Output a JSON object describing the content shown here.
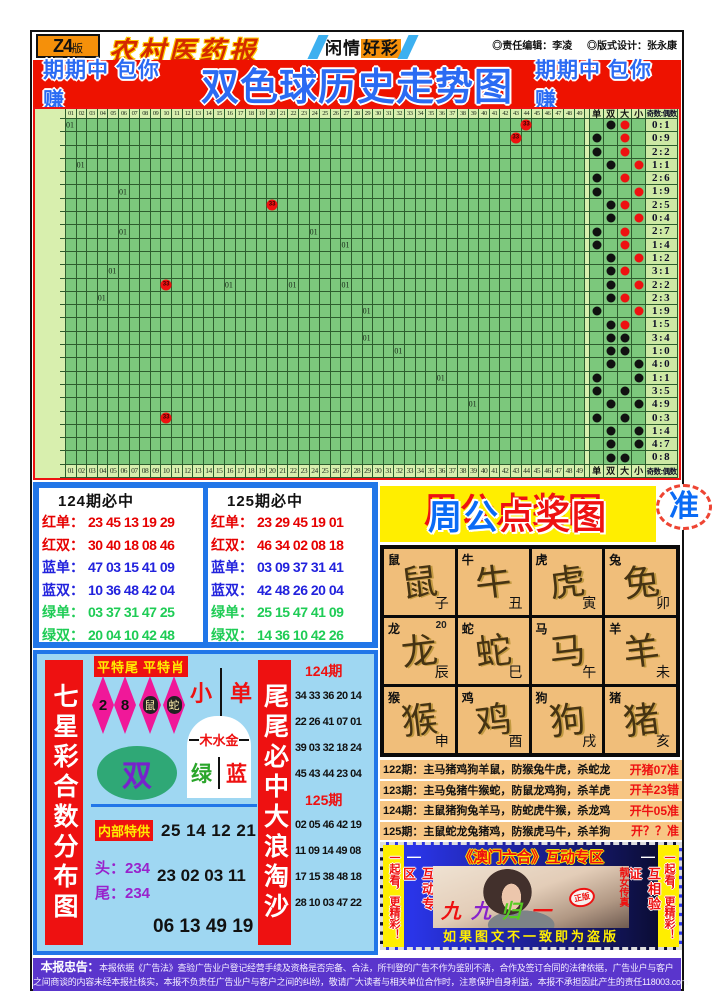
{
  "header": {
    "edition": "Z4",
    "edition_suffix": "版",
    "paper_name": "农村医药报",
    "ribbon_left": "闲情",
    "ribbon_right": "好彩",
    "editor": "◎责任编辑：李凌",
    "designer": "◎版式设计：张永康"
  },
  "banner": {
    "left": "期期中 包你赚",
    "title": "双色球历史走势图",
    "right": "期期中 包你赚"
  },
  "trend_chart": {
    "type": "table",
    "column_labels": [
      "01",
      "02",
      "03",
      "04",
      "05",
      "06",
      "07",
      "08",
      "09",
      "10",
      "11",
      "12",
      "13",
      "14",
      "15",
      "16",
      "17",
      "18",
      "19",
      "20",
      "21",
      "22",
      "23",
      "24",
      "25",
      "26",
      "27",
      "28",
      "29",
      "30",
      "31",
      "32",
      "33",
      "34",
      "35",
      "36",
      "37",
      "38",
      "39",
      "40",
      "41",
      "42",
      "43",
      "44",
      "45",
      "46",
      "47",
      "48",
      "49"
    ],
    "side_headers": [
      "单",
      "双",
      "大",
      "小"
    ],
    "ratio_header": "奇数:偶数",
    "rows": [
      {
        "marks": [
          {
            "col": 1,
            "text": "01"
          }
        ],
        "balls": [
          {
            "col": 44,
            "text": "33"
          }
        ],
        "parity": "双",
        "size": "大",
        "sizeColor": "red",
        "ratio": "0:1"
      },
      {
        "marks": [],
        "balls": [
          {
            "col": 43,
            "text": "33"
          }
        ],
        "parity": "单",
        "size": "大",
        "sizeColor": "red",
        "ratio": "0:9"
      },
      {
        "marks": [],
        "balls": [],
        "parity": "单",
        "size": "大",
        "sizeColor": "red",
        "ratio": "2:2"
      },
      {
        "marks": [
          {
            "col": 2,
            "text": "01"
          }
        ],
        "balls": [],
        "parity": "双",
        "size": "小",
        "sizeColor": "red",
        "ratio": "1:1"
      },
      {
        "marks": [],
        "balls": [],
        "parity": "单",
        "size": "大",
        "sizeColor": "red",
        "ratio": "2:6"
      },
      {
        "marks": [
          {
            "col": 6,
            "text": "01"
          }
        ],
        "balls": [],
        "parity": "单",
        "size": "小",
        "sizeColor": "red",
        "ratio": "1:9"
      },
      {
        "marks": [],
        "balls": [
          {
            "col": 20,
            "text": "33"
          }
        ],
        "parity": "双",
        "size": "大",
        "sizeColor": "red",
        "ratio": "2:5"
      },
      {
        "marks": [],
        "balls": [],
        "parity": "双",
        "size": "小",
        "sizeColor": "red",
        "ratio": "0:4"
      },
      {
        "marks": [
          {
            "col": 6,
            "text": "01"
          },
          {
            "col": 24,
            "text": "01"
          }
        ],
        "balls": [],
        "parity": "单",
        "size": "大",
        "sizeColor": "red",
        "ratio": "2:7"
      },
      {
        "marks": [
          {
            "col": 27,
            "text": "01"
          }
        ],
        "balls": [],
        "parity": "单",
        "size": "大",
        "sizeColor": "red",
        "ratio": "1:4"
      },
      {
        "marks": [],
        "balls": [],
        "parity": "双",
        "size": "小",
        "sizeColor": "red",
        "ratio": "1:2"
      },
      {
        "marks": [
          {
            "col": 5,
            "text": "01"
          }
        ],
        "balls": [],
        "parity": "双",
        "size": "大",
        "sizeColor": "red",
        "ratio": "3:1"
      },
      {
        "marks": [
          {
            "col": 16,
            "text": "01"
          },
          {
            "col": 22,
            "text": "01"
          },
          {
            "col": 27,
            "text": "01"
          }
        ],
        "balls": [
          {
            "col": 10,
            "text": "33"
          }
        ],
        "parity": "双",
        "size": "小",
        "sizeColor": "red",
        "ratio": "2:2"
      },
      {
        "marks": [
          {
            "col": 4,
            "text": "01"
          }
        ],
        "balls": [],
        "parity": "双",
        "size": "大",
        "sizeColor": "red",
        "ratio": "2:3"
      },
      {
        "marks": [
          {
            "col": 29,
            "text": "01"
          }
        ],
        "balls": [],
        "parity": "单",
        "size": "小",
        "sizeColor": "red",
        "ratio": "1:9"
      },
      {
        "marks": [],
        "balls": [],
        "parity": "双",
        "size": "大",
        "sizeColor": "red",
        "ratio": "1:5"
      },
      {
        "marks": [
          {
            "col": 29,
            "text": "01"
          }
        ],
        "balls": [],
        "parity": "双",
        "size": "大",
        "sizeColor": "black",
        "ratio": "3:4"
      },
      {
        "marks": [
          {
            "col": 32,
            "text": "01"
          }
        ],
        "balls": [],
        "parity": "双",
        "size": "大",
        "sizeColor": "black",
        "ratio": "1:0"
      },
      {
        "marks": [],
        "balls": [],
        "parity": "双",
        "size": "小",
        "sizeColor": "black",
        "ratio": "4:0"
      },
      {
        "marks": [
          {
            "col": 36,
            "text": "01"
          }
        ],
        "balls": [],
        "parity": "单",
        "size": "小",
        "sizeColor": "black",
        "ratio": "1:1"
      },
      {
        "marks": [],
        "balls": [],
        "parity": "单",
        "size": "大",
        "sizeColor": "black",
        "ratio": "3:5"
      },
      {
        "marks": [
          {
            "col": 39,
            "text": "01"
          }
        ],
        "balls": [],
        "parity": "双",
        "size": "小",
        "sizeColor": "black",
        "ratio": "4:9"
      },
      {
        "marks": [],
        "balls": [
          {
            "col": 10,
            "text": "33"
          }
        ],
        "parity": "单",
        "size": "大",
        "sizeColor": "black",
        "ratio": "0:3"
      },
      {
        "marks": [],
        "balls": [],
        "parity": "双",
        "size": "小",
        "sizeColor": "black",
        "ratio": "1:4"
      },
      {
        "marks": [],
        "balls": [],
        "parity": "双",
        "size": "小",
        "sizeColor": "black",
        "ratio": "4:7"
      },
      {
        "marks": [],
        "balls": [],
        "parity": "双",
        "size": "大",
        "sizeColor": "black",
        "ratio": "0:8"
      }
    ]
  },
  "predictions": [
    {
      "title": "124期必中",
      "rows": [
        {
          "label": "红单：",
          "color": "red",
          "value": "23 45 13 19 29"
        },
        {
          "label": "红双：",
          "color": "red",
          "value": "30 40 18 08 46"
        },
        {
          "label": "蓝单：",
          "color": "blue",
          "value": "47 03 15 41 09"
        },
        {
          "label": "蓝双：",
          "color": "blue",
          "value": "10 36 48 42 04"
        },
        {
          "label": "绿单：",
          "color": "green",
          "value": "03 37 31 47 25"
        },
        {
          "label": "绿双：",
          "color": "green",
          "value": "20 04 10 42 48"
        }
      ]
    },
    {
      "title": "125期必中",
      "rows": [
        {
          "label": "红单：",
          "color": "red",
          "value": "23 29 45 19 01"
        },
        {
          "label": "红双：",
          "color": "red",
          "value": "46 34 02 08 18"
        },
        {
          "label": "蓝单：",
          "color": "blue",
          "value": "03 09 37 31 41"
        },
        {
          "label": "蓝双：",
          "color": "blue",
          "value": "42 48 26 20 04"
        },
        {
          "label": "绿单：",
          "color": "green",
          "value": "25 15 47 41 09"
        },
        {
          "label": "绿双：",
          "color": "green",
          "value": "14 36 10 42 26"
        }
      ]
    }
  ],
  "zhougong": {
    "title_blue": "周公",
    "title_red": "点奖图",
    "badge": "准",
    "zodiac": [
      {
        "animal": "鼠",
        "branch": "子",
        "note": ""
      },
      {
        "animal": "牛",
        "branch": "丑",
        "note": ""
      },
      {
        "animal": "虎",
        "branch": "寅",
        "note": ""
      },
      {
        "animal": "兔",
        "branch": "卯",
        "note": ""
      },
      {
        "animal": "龙",
        "branch": "辰",
        "note": "20"
      },
      {
        "animal": "蛇",
        "branch": "巳",
        "note": ""
      },
      {
        "animal": "马",
        "branch": "午",
        "note": ""
      },
      {
        "animal": "羊",
        "branch": "未",
        "note": ""
      },
      {
        "animal": "猴",
        "branch": "申",
        "note": ""
      },
      {
        "animal": "鸡",
        "branch": "酉",
        "note": ""
      },
      {
        "animal": "狗",
        "branch": "戌",
        "note": ""
      },
      {
        "animal": "猪",
        "branch": "亥",
        "note": ""
      }
    ],
    "period_rows": [
      {
        "label": "122期：",
        "body": "主马猪鸡狗羊鼠，防猴兔牛虎，杀蛇龙",
        "result": "开猪07准"
      },
      {
        "label": "123期：",
        "body": "主马兔猪牛猴蛇，防鼠龙鸡狗，杀羊虎",
        "result": "开羊23错"
      },
      {
        "label": "124期：",
        "body": "主鼠猪狗兔羊马，防蛇虎牛猴，杀龙鸡",
        "result": "开牛05准"
      },
      {
        "label": "125期：",
        "body": "主鼠蛇龙兔猪鸡，防猴虎马牛，杀羊狗",
        "result": "开？？准"
      }
    ]
  },
  "macau": {
    "dash_left": "—",
    "dash_right": "—",
    "banner": "《澳门六合》互动专区",
    "left_strip": "一起看，更精彩！",
    "right_strip": "一起看，更精彩！",
    "inner_left": "互动专区",
    "inner_right": "互相验证",
    "photo_tag": "靓女传真",
    "photo_badge": "正版",
    "caption_chars": [
      {
        "ch": "九",
        "color": "#ee1111"
      },
      {
        "ch": "九",
        "color": "#8822cc"
      },
      {
        "ch": "归",
        "color": "#55cc22"
      },
      {
        "ch": "一",
        "color": "#ee1111"
      }
    ],
    "bottom_note": "如果图文不一致即为盗版"
  },
  "qixingcai": {
    "left_bar": "七星彩合数分布图",
    "label1": "平特尾",
    "label2": "平特肖",
    "diamonds": [
      {
        "text": "2",
        "style": "plain"
      },
      {
        "text": "8",
        "style": "plain"
      },
      {
        "text": "鼠",
        "style": "pill"
      },
      {
        "text": "蛇",
        "style": "pill"
      }
    ],
    "xiao": "小",
    "dan": "单",
    "wuxing": "木水金",
    "lv": "绿",
    "lan": "蓝",
    "shuang": "双",
    "neibu_label": "内部特供",
    "neibu_numbers": "25 14 12 21",
    "tou": "头：234",
    "wei": "尾：234",
    "numbers2": "23 02 03 11",
    "numbers3": "06 13 49 19",
    "right_bar": "尾尾必中大浪淘沙"
  },
  "wave_column": {
    "periods": [
      {
        "label": "124期",
        "rows": [
          "34 33 36 20 14",
          "22 26 41 07 01",
          "39 03 32 18 24",
          "45 43 44 23 04"
        ]
      },
      {
        "label": "125期",
        "rows": [
          "02 05 46 42 19",
          "11 09 14 49 08",
          "17 15 38 48 18",
          "28 10 03 47 22"
        ]
      }
    ]
  },
  "footer": {
    "label": "本报忠告：",
    "line1": "本报依据《广告法》查验广告业户登记经营手续及资格是否完备、合法，所刊登的广告不作为鉴别不清，合作及签订合同的法律依据，广告业户与客户",
    "line2": "之间商谈的内容未经本报社核实，本报不负责任广告业户与客户之间的纠纷，敬请广大读者与相关单位合作时，注意保护自身利益，本报不承担因此产生的责任118003.com"
  }
}
